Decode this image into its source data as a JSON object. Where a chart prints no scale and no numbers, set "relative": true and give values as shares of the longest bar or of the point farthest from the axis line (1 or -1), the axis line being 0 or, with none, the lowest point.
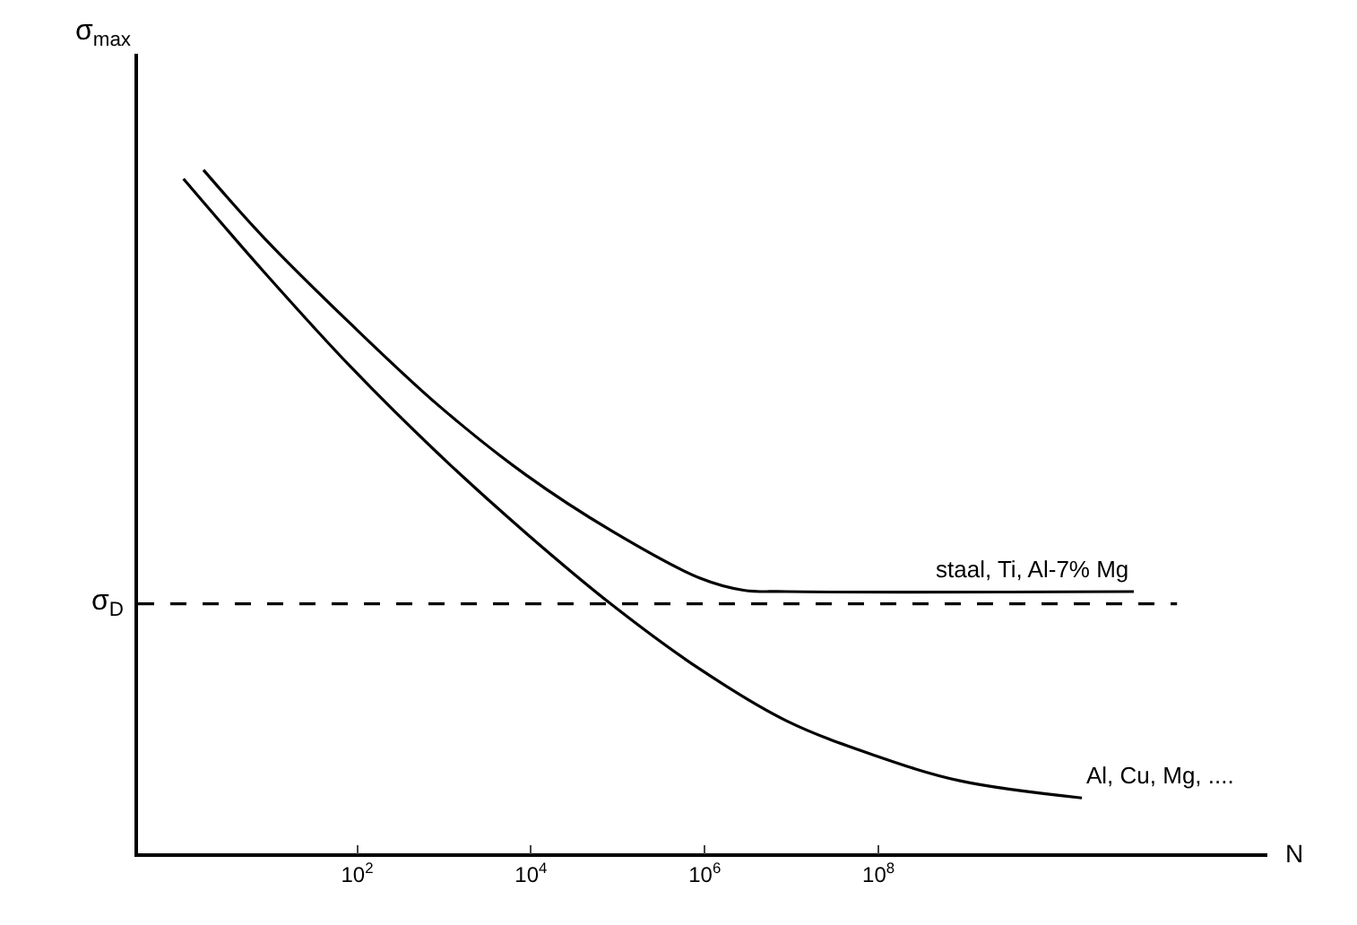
{
  "chart_data": {
    "type": "line",
    "relative": true,
    "xlabel": "N",
    "ylabel": "σ$_{max}$",
    "log": "x",
    "legend": false,
    "tick_labels": "x",
    "marker": "none",
    "line_style": "solid",
    "xlim": [
      0.3,
      3000000000000
    ],
    "xticks": [
      {
        "value": 100,
        "label": "10$^{2}$"
      },
      {
        "value": 10000,
        "label": "10$^{4}$"
      },
      {
        "value": 1000000,
        "label": "10$^{6}$"
      },
      {
        "value": 100000000,
        "label": "10$^{8}$"
      }
    ],
    "series": [
      {
        "name": "staal, Ti, Al-7% Mg",
        "color": "#000000",
        "x": [
          1.7,
          8.7,
          87,
          870,
          8700,
          87000,
          870000,
          2800000,
          8700000,
          87000000000
        ],
        "values": [
          1.0,
          0.899,
          0.773,
          0.655,
          0.554,
          0.471,
          0.403,
          0.385,
          0.383,
          0.383
        ]
      },
      {
        "name": "Al, Cu, Mg, ....",
        "color": "#000000",
        "x": [
          1,
          8.7,
          87,
          870,
          8700,
          87000,
          870000,
          8700000,
          87000000,
          870000000,
          22000000000
        ],
        "values": [
          0.987,
          0.849,
          0.71,
          0.584,
          0.469,
          0.363,
          0.27,
          0.194,
          0.144,
          0.106,
          0.081
        ]
      }
    ],
    "ref_lines": [
      {
        "axis": "y",
        "value": 0.365,
        "label": "σ$_{D}$",
        "color": "#000000",
        "line_style": "dashed"
      }
    ]
  }
}
